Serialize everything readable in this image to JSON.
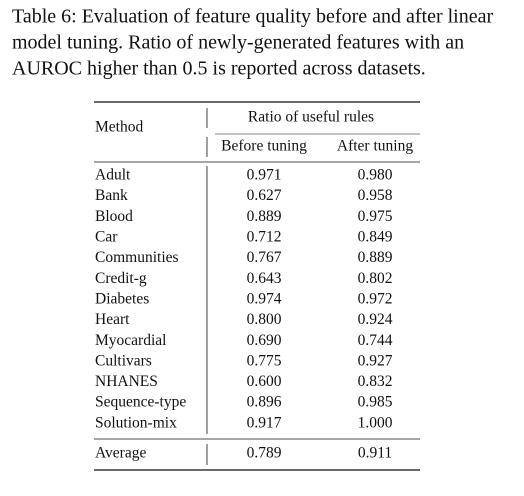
{
  "caption": [
    "Table 6: Evaluation of feature quality before and after linear",
    "model tuning.  Ratio of newly-generated features with an",
    "AUROC higher than 0.5 is reported across datasets."
  ],
  "table": {
    "header": {
      "method": "Method",
      "group": "Ratio of useful rules",
      "columns": [
        "Before tuning",
        "After tuning"
      ]
    },
    "rows": [
      [
        "Adult",
        "0.971",
        "0.980"
      ],
      [
        "Bank",
        "0.627",
        "0.958"
      ],
      [
        "Blood",
        "0.889",
        "0.975"
      ],
      [
        "Car",
        "0.712",
        "0.849"
      ],
      [
        "Communities",
        "0.767",
        "0.889"
      ],
      [
        "Credit-g",
        "0.643",
        "0.802"
      ],
      [
        "Diabetes",
        "0.974",
        "0.972"
      ],
      [
        "Heart",
        "0.800",
        "0.924"
      ],
      [
        "Myocardial",
        "0.690",
        "0.744"
      ],
      [
        "Cultivars",
        "0.775",
        "0.927"
      ],
      [
        "NHANES",
        "0.600",
        "0.832"
      ],
      [
        "Sequence-type",
        "0.896",
        "0.985"
      ],
      [
        "Solution-mix",
        "0.917",
        "1.000"
      ]
    ],
    "average": [
      "Average",
      "0.789",
      "0.911"
    ]
  }
}
